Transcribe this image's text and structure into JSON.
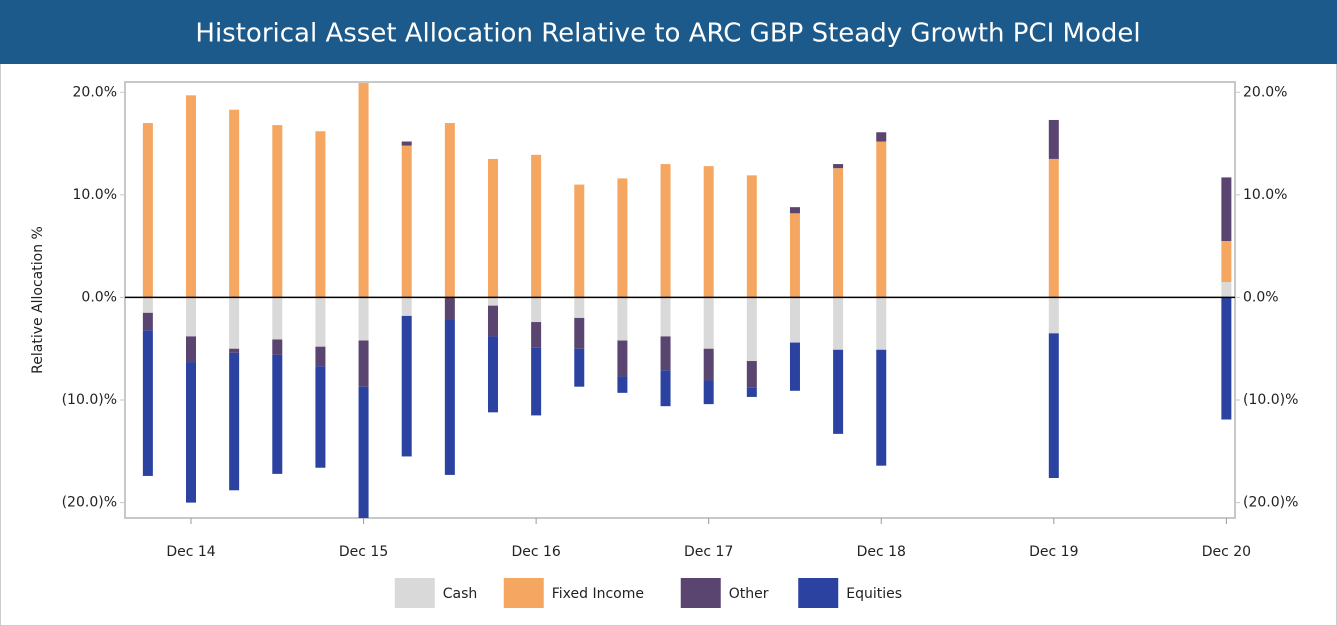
{
  "chart_data": {
    "type": "bar",
    "stacked": true,
    "title": "Historical Asset Allocation Relative to ARC GBP Steady Growth PCI Model",
    "y_label": "Relative Allocation %",
    "x": [
      -1,
      0,
      1,
      2,
      3,
      4,
      5,
      6,
      7,
      8,
      9,
      10,
      11,
      12,
      13,
      14,
      15,
      16,
      20,
      24
    ],
    "xlim": [
      -1.53,
      24.2
    ],
    "xticks": [
      {
        "value": 0,
        "label": "Dec 14"
      },
      {
        "value": 4,
        "label": "Dec 15"
      },
      {
        "value": 8,
        "label": "Dec 16"
      },
      {
        "value": 12,
        "label": "Dec 17"
      },
      {
        "value": 16,
        "label": "Dec 18"
      },
      {
        "value": 20,
        "label": "Dec 19"
      },
      {
        "value": 24,
        "label": "Dec 20"
      }
    ],
    "ylim": [
      -21.5,
      21
    ],
    "yticks": [
      {
        "value": 20,
        "label": "20.0%"
      },
      {
        "value": 10,
        "label": "10.0%"
      },
      {
        "value": 0,
        "label": "0.0%"
      },
      {
        "value": -10,
        "label": "(10.0)%"
      },
      {
        "value": -20,
        "label": "(20.0)%"
      }
    ],
    "legend": "bottom",
    "series": [
      {
        "name": "Cash",
        "color": "#d9d9d9",
        "values": [
          -1.5,
          -3.8,
          -5.0,
          -4.1,
          -4.8,
          -4.2,
          -1.8,
          0,
          -0.8,
          -2.4,
          -2.0,
          -4.2,
          -3.8,
          -5.0,
          -6.2,
          -4.4,
          -5.1,
          -5.1,
          -3.5,
          1.5
        ]
      },
      {
        "name": "Fixed Income",
        "color": "#f5a762",
        "values": [
          17.0,
          19.7,
          18.3,
          16.8,
          16.2,
          20.9,
          14.8,
          17.0,
          13.5,
          13.9,
          11.0,
          11.6,
          13.0,
          12.8,
          11.9,
          8.2,
          12.6,
          15.2,
          13.5,
          4.0
        ]
      },
      {
        "name": "Other",
        "color": "#5a4570",
        "values": [
          -1.7,
          -2.5,
          -0.4,
          -1.5,
          -1.9,
          -4.5,
          0.4,
          -2.2,
          -3.0,
          -2.5,
          -3.0,
          -3.5,
          -3.3,
          -3.1,
          -2.6,
          0.6,
          0.4,
          0.9,
          3.8,
          6.2
        ]
      },
      {
        "name": "Equities",
        "color": "#2b42a0",
        "values": [
          -14.2,
          -13.7,
          -13.4,
          -11.6,
          -9.9,
          -12.8,
          -13.7,
          -15.1,
          -7.4,
          -6.6,
          -3.7,
          -1.6,
          -3.5,
          -2.3,
          -0.9,
          -4.7,
          -8.2,
          -11.3,
          -14.1,
          -11.9
        ]
      }
    ]
  }
}
